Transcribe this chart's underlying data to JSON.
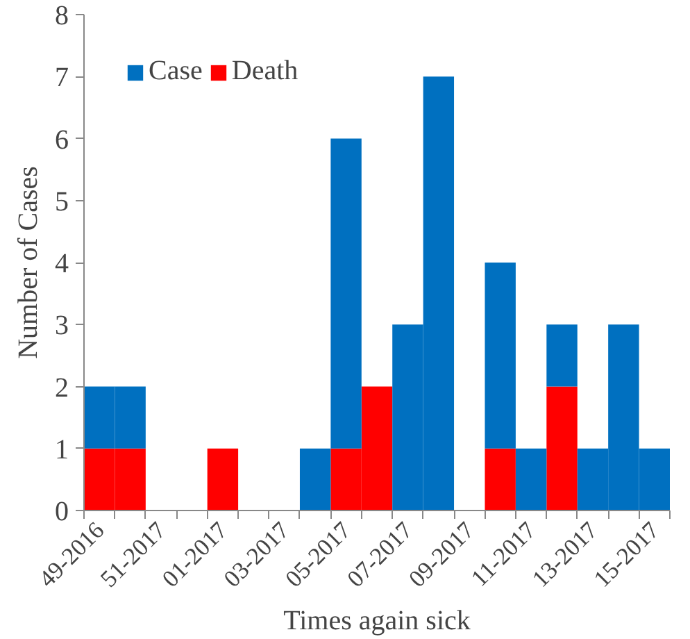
{
  "chart_data": {
    "type": "bar",
    "stacked": true,
    "xlabel": "Times again sick",
    "ylabel": "Number of Cases",
    "categories": [
      "49-2016",
      null,
      "51-2017",
      null,
      "01-2017",
      null,
      "03-2017",
      null,
      "05-2017",
      null,
      "07-2017",
      null,
      "09-2017",
      null,
      "11-2017",
      null,
      "13-2017",
      null,
      "15-2017"
    ],
    "series": [
      {
        "name": "Death",
        "color": "#ff0000",
        "values": [
          1,
          1,
          0,
          0,
          1,
          0,
          0,
          0,
          1,
          2,
          0,
          0,
          0,
          1,
          0,
          2,
          0,
          0,
          0
        ]
      },
      {
        "name": "Case",
        "color": "#0070c0",
        "values": [
          1,
          1,
          0,
          0,
          0,
          0,
          0,
          1,
          5,
          0,
          3,
          7,
          0,
          3,
          1,
          1,
          1,
          3,
          1
        ]
      }
    ],
    "ylim": [
      0,
      8
    ],
    "yticks": [
      0,
      1,
      2,
      3,
      4,
      5,
      6,
      7,
      8
    ],
    "grid": false,
    "legend": "top left"
  }
}
